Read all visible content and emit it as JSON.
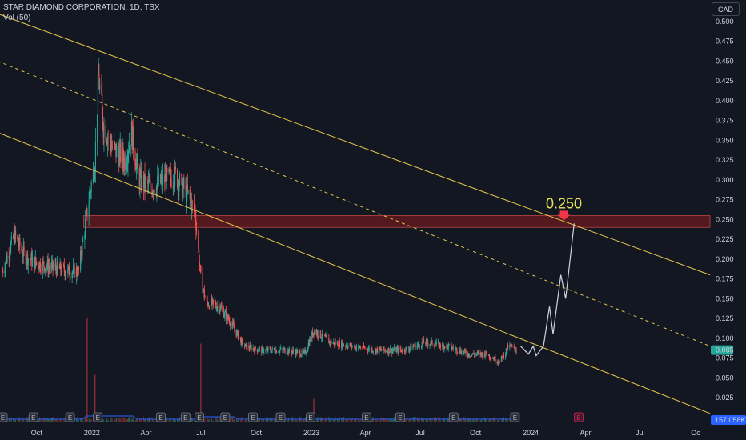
{
  "header": {
    "symbol": "STAR DIAMOND CORPORATION, 1D, TSX",
    "indicator": "Vol (50)"
  },
  "currency_button": "CAD",
  "colors": {
    "background": "#131722",
    "up": "#26a69a",
    "down": "#ef5350",
    "channel": "#e6c84c",
    "annotation": "#e9e35a",
    "projection": "#d1d4dc",
    "zone": "#5a1a1f",
    "last_price_badge": "#26a69a",
    "volume_ma": "#2962ff",
    "volume_badge": "#2962ff",
    "earnings_marker": "#787b86"
  },
  "chart_data": {
    "type": "candlestick",
    "title": "STAR DIAMOND CORPORATION, 1D, TSX",
    "y_axis": {
      "range": [
        0.0,
        0.5
      ],
      "ticks": [
        "0.500",
        "0.475",
        "0.450",
        "0.425",
        "0.400",
        "0.375",
        "0.350",
        "0.325",
        "0.300",
        "0.275",
        "0.250",
        "0.225",
        "0.200",
        "0.175",
        "0.150",
        "0.125",
        "0.100",
        "0.075",
        "0.050",
        "0.025"
      ],
      "position": "right"
    },
    "x_axis": {
      "ticks": [
        "Oct",
        "2022",
        "Apr",
        "Jul",
        "Oct",
        "2023",
        "Apr",
        "Jul",
        "Oct",
        "2024",
        "Apr",
        "Jul",
        "Oc"
      ]
    },
    "last_price": "0.085",
    "volume_last": "157.058K",
    "price_path": [
      {
        "date": "2021-08-05",
        "price": 0.185
      },
      {
        "date": "2021-08-25",
        "price": 0.23
      },
      {
        "date": "2021-09-10",
        "price": 0.205
      },
      {
        "date": "2021-10-01",
        "price": 0.195
      },
      {
        "date": "2021-10-25",
        "price": 0.19
      },
      {
        "date": "2021-11-20",
        "price": 0.185
      },
      {
        "date": "2021-12-10",
        "price": 0.185
      },
      {
        "date": "2021-12-24",
        "price": 0.26
      },
      {
        "date": "2022-01-06",
        "price": 0.325
      },
      {
        "date": "2022-01-12",
        "price": 0.43
      },
      {
        "date": "2022-01-20",
        "price": 0.37
      },
      {
        "date": "2022-02-05",
        "price": 0.34
      },
      {
        "date": "2022-02-25",
        "price": 0.325
      },
      {
        "date": "2022-03-08",
        "price": 0.36
      },
      {
        "date": "2022-03-20",
        "price": 0.3
      },
      {
        "date": "2022-04-10",
        "price": 0.29
      },
      {
        "date": "2022-05-01",
        "price": 0.3
      },
      {
        "date": "2022-05-20",
        "price": 0.305
      },
      {
        "date": "2022-06-10",
        "price": 0.28
      },
      {
        "date": "2022-06-22",
        "price": 0.255
      },
      {
        "date": "2022-07-01",
        "price": 0.175
      },
      {
        "date": "2022-07-10",
        "price": 0.145
      },
      {
        "date": "2022-08-01",
        "price": 0.14
      },
      {
        "date": "2022-08-20",
        "price": 0.12
      },
      {
        "date": "2022-09-10",
        "price": 0.09
      },
      {
        "date": "2022-10-10",
        "price": 0.085
      },
      {
        "date": "2022-11-20",
        "price": 0.085
      },
      {
        "date": "2022-12-20",
        "price": 0.08
      },
      {
        "date": "2023-01-05",
        "price": 0.11
      },
      {
        "date": "2023-02-01",
        "price": 0.095
      },
      {
        "date": "2023-03-10",
        "price": 0.09
      },
      {
        "date": "2023-04-20",
        "price": 0.085
      },
      {
        "date": "2023-06-01",
        "price": 0.085
      },
      {
        "date": "2023-07-10",
        "price": 0.095
      },
      {
        "date": "2023-08-15",
        "price": 0.09
      },
      {
        "date": "2023-09-20",
        "price": 0.08
      },
      {
        "date": "2023-10-20",
        "price": 0.08
      },
      {
        "date": "2023-11-10",
        "price": 0.07
      },
      {
        "date": "2023-11-25",
        "price": 0.09
      },
      {
        "date": "2023-12-10",
        "price": 0.085
      }
    ],
    "volume_spikes": [
      {
        "date": "2021-12-24",
        "level": 1.0
      },
      {
        "date": "2022-01-06",
        "level": 0.45
      },
      {
        "date": "2022-07-01",
        "level": 0.75
      },
      {
        "date": "2023-01-05",
        "level": 0.22
      }
    ],
    "earnings_markers": [
      "2021-08-05",
      "2021-09-25",
      "2021-11-25",
      "2022-01-10",
      "2022-04-25",
      "2022-06-05",
      "2022-06-28",
      "2022-08-10",
      "2022-09-25",
      "2022-11-10",
      "2022-12-30",
      "2023-04-02",
      "2023-05-28",
      "2023-08-25",
      "2023-12-05"
    ],
    "upcoming_earnings_marker": "2024-03-20",
    "channel_lines": [
      {
        "style": "solid",
        "points": [
          {
            "date": "2021-07-28",
            "price": 0.51
          },
          {
            "date": "2024-10-25",
            "price": 0.18
          }
        ]
      },
      {
        "style": "dashed",
        "points": [
          {
            "date": "2021-07-28",
            "price": 0.45
          },
          {
            "date": "2024-10-25",
            "price": 0.09
          }
        ]
      },
      {
        "style": "solid",
        "points": [
          {
            "date": "2021-07-28",
            "price": 0.36
          },
          {
            "date": "2024-10-25",
            "price": 0.005
          }
        ]
      }
    ],
    "resistance_zone": {
      "from": 0.24,
      "to": 0.255,
      "start": "2021-12-18",
      "end": "2024-10-25"
    },
    "annotation": {
      "text": "0.250",
      "date": "2024-02-25",
      "price": 0.25
    },
    "projection_path": [
      {
        "date": "2023-12-15",
        "price": 0.09
      },
      {
        "date": "2023-12-28",
        "price": 0.08
      },
      {
        "date": "2024-01-05",
        "price": 0.09
      },
      {
        "date": "2024-01-10",
        "price": 0.078
      },
      {
        "date": "2024-01-22",
        "price": 0.09
      },
      {
        "date": "2024-02-01",
        "price": 0.14
      },
      {
        "date": "2024-02-07",
        "price": 0.105
      },
      {
        "date": "2024-02-20",
        "price": 0.18
      },
      {
        "date": "2024-02-28",
        "price": 0.15
      },
      {
        "date": "2024-03-13",
        "price": 0.245
      }
    ]
  }
}
